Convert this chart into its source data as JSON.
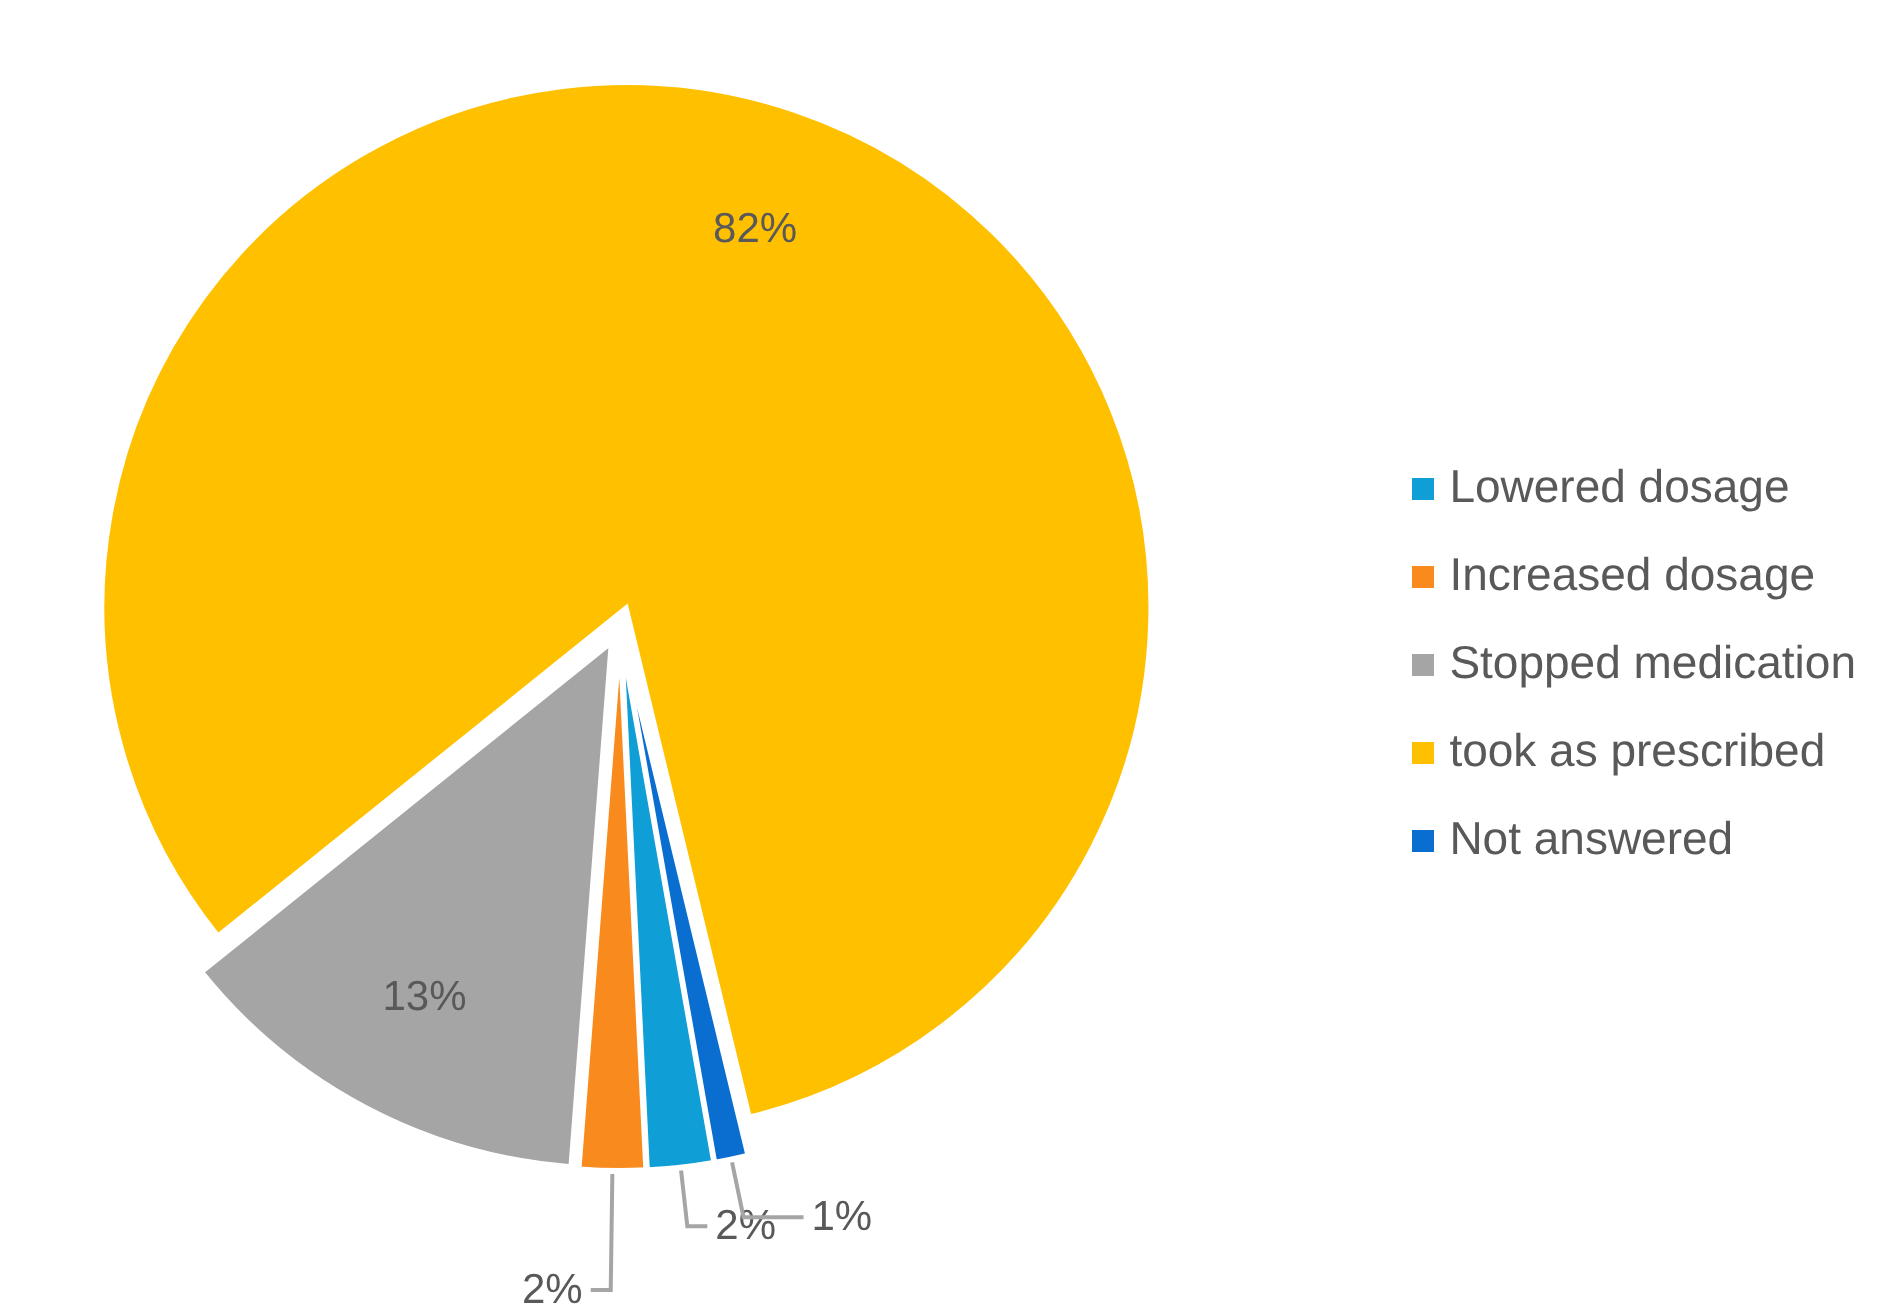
{
  "chart_data": {
    "type": "pie",
    "categories": [
      "Lowered dosage",
      "Increased dosage",
      "Stopped medication",
      "took as prescribed",
      "Not answered"
    ],
    "values": [
      2,
      2,
      13,
      82,
      1
    ],
    "colors": [
      "#0f9ed5",
      "#f98b1e",
      "#a5a5a5",
      "#ffc000",
      "#0a6ed1"
    ],
    "value_labels": [
      "2%",
      "2%",
      "13%",
      "82%",
      "1%"
    ],
    "legend": "right"
  }
}
